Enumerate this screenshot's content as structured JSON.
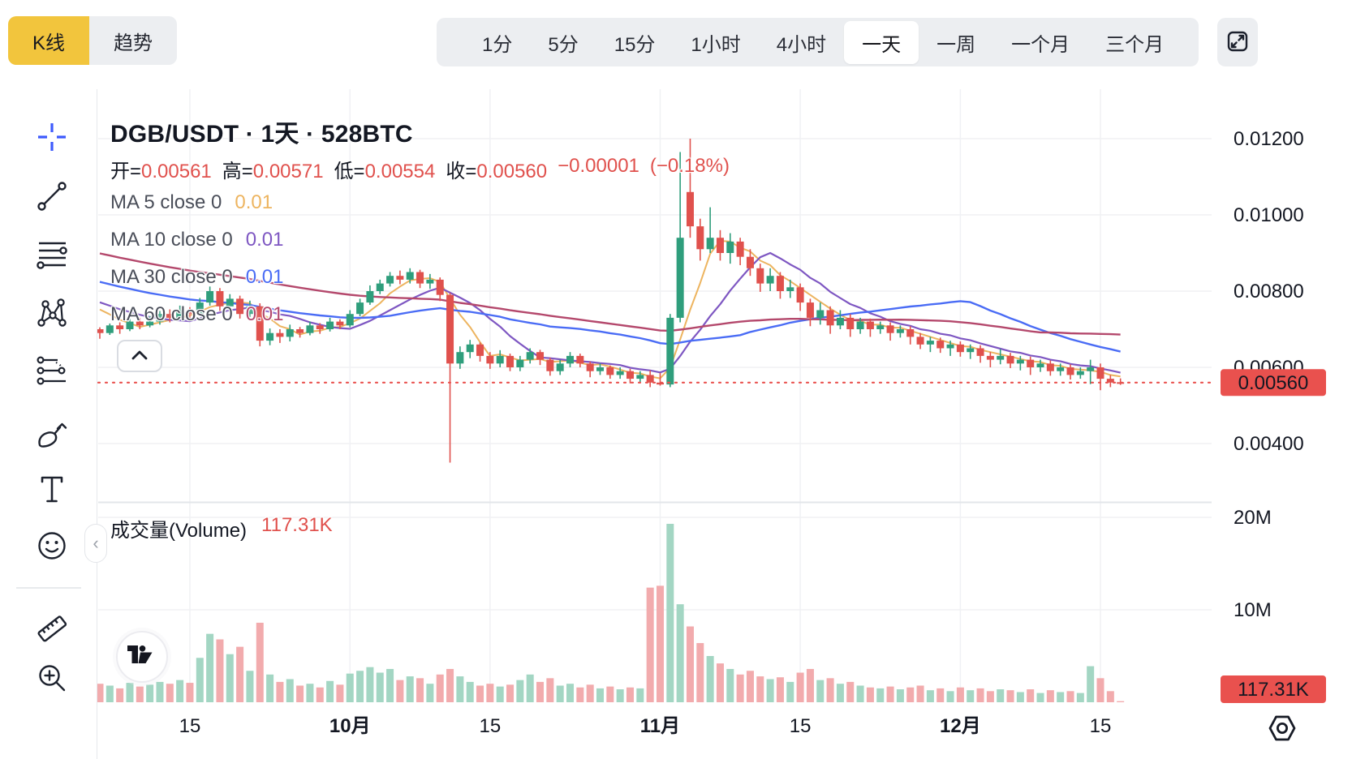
{
  "topbar": {
    "chart_type_toggle": {
      "kline_label": "K线",
      "trend_label": "趋势",
      "active": "K线",
      "active_color": "#F2C53D"
    },
    "timeframes": [
      "1分",
      "5分",
      "15分",
      "1小时",
      "4小时",
      "一天",
      "一周",
      "一个月",
      "三个月"
    ],
    "selected_timeframe": "一天"
  },
  "sidebar": {
    "tools": [
      "crosshair",
      "trend-line",
      "fib-retracement",
      "xabcd-pattern",
      "forecast",
      "brush",
      "text",
      "emoji",
      "ruler",
      "zoom-in"
    ]
  },
  "legend": {
    "title": "DGB/USDT · 1天 · 528BTC",
    "ohlc": {
      "open_label": "开=",
      "open": "0.00561",
      "high_label": "高=",
      "high": "0.00571",
      "low_label": "低=",
      "low": "0.00554",
      "close_label": "收=",
      "close": "0.00560",
      "change": "−0.00001",
      "change_pct": "(−0.18%)"
    },
    "ma_rows": [
      {
        "label": "MA 5 close 0",
        "value": "0.01",
        "color": "#EDB45F"
      },
      {
        "label": "MA 10 close 0",
        "value": "0.01",
        "color": "#7E57C2"
      },
      {
        "label": "MA 30 close 0",
        "value": "0.01",
        "color": "#4A6CF5"
      },
      {
        "label": "MA 60 close 0",
        "value": "0.01",
        "color": "#B4486C"
      }
    ]
  },
  "volume_legend": {
    "label": "成交量(Volume)",
    "value": "117.31K"
  },
  "chart_data": {
    "type": "candlestick+volume",
    "symbol": "DGB/USDT",
    "interval": "1天",
    "subtitle": "528BTC",
    "grid": true,
    "y_ticks": [
      {
        "label": "0.01200",
        "price": 0.012
      },
      {
        "label": "0.01000",
        "price": 0.01
      },
      {
        "label": "0.00800",
        "price": 0.008
      },
      {
        "label": "0.00600",
        "price": 0.006
      },
      {
        "label": "0.00400",
        "price": 0.004
      }
    ],
    "volume_ticks": [
      {
        "label": "20M",
        "value": 20
      },
      {
        "label": "10M",
        "value": 10
      }
    ],
    "x_ticks": [
      {
        "index": 9,
        "label": "15",
        "bold": false
      },
      {
        "index": 25,
        "label": "10月",
        "bold": true
      },
      {
        "index": 39,
        "label": "15",
        "bold": false
      },
      {
        "index": 56,
        "label": "11月",
        "bold": true
      },
      {
        "index": 70,
        "label": "15",
        "bold": false
      },
      {
        "index": 86,
        "label": "12月",
        "bold": true
      },
      {
        "index": 100,
        "label": "15",
        "bold": false
      }
    ],
    "price_range_visible": [
      0.0035,
      0.0122
    ],
    "current_price": {
      "value": 0.0056,
      "label": "0.00560"
    },
    "current_volume": {
      "value": 0.117,
      "label": "117.31K"
    },
    "colors": {
      "up": "#2F9E7C",
      "down": "#E0514D",
      "vol_up": "#A3D6C3",
      "vol_down": "#F2ABAD",
      "grid": "#F0F1F4",
      "separator": "#E3E6EA",
      "ma5": "#EDB45F",
      "ma10": "#7E57C2",
      "ma30": "#4A6CF5",
      "ma60": "#B4486C",
      "tag": "#E9514E",
      "current_line": "#E9514E",
      "axis_text": "#131722"
    },
    "ma_definitions": [
      {
        "period": 5,
        "color": "#EDB45F",
        "width": 2
      },
      {
        "period": 10,
        "color": "#7E57C2",
        "width": 2.2
      },
      {
        "period": 30,
        "color": "#4A6CF5",
        "width": 2.4
      },
      {
        "period": 60,
        "color": "#B4486C",
        "width": 2.4
      }
    ],
    "ma_warmup": {
      "start": 0.0105,
      "end": 0.0076,
      "count": 60
    },
    "candles_format": [
      "open",
      "high",
      "low",
      "close",
      "volume_millions"
    ],
    "candles": [
      [
        0.007,
        0.00705,
        0.00675,
        0.0069,
        2.0
      ],
      [
        0.0069,
        0.00715,
        0.00685,
        0.0071,
        1.8
      ],
      [
        0.0071,
        0.00718,
        0.00688,
        0.007,
        1.5
      ],
      [
        0.007,
        0.00728,
        0.00695,
        0.0072,
        2.1
      ],
      [
        0.0072,
        0.0073,
        0.007,
        0.0071,
        1.7
      ],
      [
        0.0071,
        0.00735,
        0.00705,
        0.0072,
        1.9
      ],
      [
        0.0072,
        0.00748,
        0.00712,
        0.0074,
        2.2
      ],
      [
        0.0074,
        0.00752,
        0.00718,
        0.0073,
        2.0
      ],
      [
        0.0073,
        0.00762,
        0.00724,
        0.0075,
        2.4
      ],
      [
        0.0075,
        0.00758,
        0.00728,
        0.0074,
        2.1
      ],
      [
        0.0074,
        0.00782,
        0.00735,
        0.0077,
        4.8
      ],
      [
        0.0077,
        0.00812,
        0.00762,
        0.008,
        7.4
      ],
      [
        0.008,
        0.00808,
        0.00748,
        0.0076,
        6.8
      ],
      [
        0.0076,
        0.00792,
        0.00745,
        0.0078,
        5.2
      ],
      [
        0.0078,
        0.00788,
        0.00728,
        0.0074,
        6.0
      ],
      [
        0.0074,
        0.00775,
        0.00732,
        0.0076,
        3.4
      ],
      [
        0.0076,
        0.00768,
        0.00655,
        0.0067,
        8.6
      ],
      [
        0.0067,
        0.00702,
        0.00658,
        0.0069,
        3.0
      ],
      [
        0.0069,
        0.007,
        0.00664,
        0.0068,
        2.2
      ],
      [
        0.0068,
        0.00712,
        0.00668,
        0.007,
        2.5
      ],
      [
        0.007,
        0.00706,
        0.00678,
        0.0069,
        1.8
      ],
      [
        0.0069,
        0.0072,
        0.00684,
        0.0071,
        2.0
      ],
      [
        0.0071,
        0.00716,
        0.00688,
        0.007,
        1.6
      ],
      [
        0.007,
        0.0073,
        0.00694,
        0.0072,
        2.3
      ],
      [
        0.0072,
        0.00726,
        0.007,
        0.0071,
        1.9
      ],
      [
        0.0071,
        0.0075,
        0.00705,
        0.0074,
        3.1
      ],
      [
        0.0074,
        0.0078,
        0.00734,
        0.0077,
        3.4
      ],
      [
        0.0077,
        0.00815,
        0.00764,
        0.008,
        3.8
      ],
      [
        0.008,
        0.0083,
        0.00792,
        0.0082,
        3.2
      ],
      [
        0.0082,
        0.0085,
        0.00812,
        0.0084,
        3.6
      ],
      [
        0.0084,
        0.00854,
        0.00818,
        0.0083,
        2.4
      ],
      [
        0.0083,
        0.0086,
        0.0082,
        0.0085,
        2.8
      ],
      [
        0.0085,
        0.00856,
        0.00808,
        0.0082,
        2.6
      ],
      [
        0.0082,
        0.00845,
        0.00806,
        0.0083,
        2.0
      ],
      [
        0.0083,
        0.00836,
        0.00774,
        0.0079,
        3.0
      ],
      [
        0.0079,
        0.00795,
        0.0035,
        0.0061,
        3.6
      ],
      [
        0.0061,
        0.00655,
        0.00596,
        0.0064,
        2.8
      ],
      [
        0.0064,
        0.00672,
        0.00624,
        0.0066,
        2.2
      ],
      [
        0.0066,
        0.00665,
        0.00615,
        0.0063,
        1.8
      ],
      [
        0.0063,
        0.0064,
        0.00596,
        0.0061,
        2.0
      ],
      [
        0.0061,
        0.00645,
        0.006,
        0.0063,
        1.7
      ],
      [
        0.0063,
        0.00636,
        0.0059,
        0.006,
        1.9
      ],
      [
        0.006,
        0.0063,
        0.0059,
        0.0062,
        2.4
      ],
      [
        0.0062,
        0.0065,
        0.0061,
        0.0064,
        3.0
      ],
      [
        0.0064,
        0.00646,
        0.00606,
        0.0062,
        2.2
      ],
      [
        0.0062,
        0.00625,
        0.00578,
        0.0059,
        2.6
      ],
      [
        0.0059,
        0.0062,
        0.0058,
        0.0061,
        1.8
      ],
      [
        0.0061,
        0.0064,
        0.006,
        0.0063,
        2.0
      ],
      [
        0.0063,
        0.00636,
        0.006,
        0.0061,
        1.6
      ],
      [
        0.0061,
        0.00615,
        0.00574,
        0.0059,
        1.9
      ],
      [
        0.0059,
        0.0061,
        0.0058,
        0.006,
        1.5
      ],
      [
        0.006,
        0.00605,
        0.0057,
        0.0058,
        1.7
      ],
      [
        0.0058,
        0.006,
        0.0057,
        0.0059,
        1.4
      ],
      [
        0.0059,
        0.00596,
        0.00558,
        0.0057,
        1.6
      ],
      [
        0.0057,
        0.0059,
        0.0056,
        0.0058,
        1.5
      ],
      [
        0.0058,
        0.00592,
        0.00548,
        0.0056,
        12.4
      ],
      [
        0.0056,
        0.00585,
        0.00552,
        0.00555,
        12.6
      ],
      [
        0.00555,
        0.0074,
        0.00548,
        0.0073,
        19.3
      ],
      [
        0.0073,
        0.01165,
        0.00718,
        0.0094,
        10.6
      ],
      [
        0.0106,
        0.012,
        0.0094,
        0.0097,
        8.2
      ],
      [
        0.0097,
        0.0099,
        0.0088,
        0.0091,
        6.4
      ],
      [
        0.0091,
        0.0102,
        0.009,
        0.0094,
        5.0
      ],
      [
        0.0094,
        0.0096,
        0.0088,
        0.009,
        4.2
      ],
      [
        0.009,
        0.00952,
        0.00872,
        0.0093,
        3.6
      ],
      [
        0.0093,
        0.0094,
        0.00868,
        0.0089,
        3.0
      ],
      [
        0.0089,
        0.0091,
        0.0084,
        0.0086,
        3.4
      ],
      [
        0.0086,
        0.00872,
        0.00798,
        0.0082,
        2.8
      ],
      [
        0.0082,
        0.0086,
        0.008,
        0.0084,
        2.5
      ],
      [
        0.0084,
        0.0085,
        0.0078,
        0.008,
        2.7
      ],
      [
        0.008,
        0.0083,
        0.00782,
        0.0081,
        2.2
      ],
      [
        0.0081,
        0.0082,
        0.00748,
        0.0077,
        3.2
      ],
      [
        0.0077,
        0.0078,
        0.00708,
        0.0073,
        3.6
      ],
      [
        0.0073,
        0.0077,
        0.00712,
        0.0075,
        2.4
      ],
      [
        0.0075,
        0.0076,
        0.00688,
        0.0071,
        2.6
      ],
      [
        0.0071,
        0.0075,
        0.007,
        0.0073,
        2.0
      ],
      [
        0.0073,
        0.0074,
        0.0068,
        0.007,
        2.2
      ],
      [
        0.007,
        0.0073,
        0.00688,
        0.0072,
        1.8
      ],
      [
        0.0072,
        0.00728,
        0.0068,
        0.007,
        1.6
      ],
      [
        0.007,
        0.0072,
        0.00688,
        0.0071,
        1.5
      ],
      [
        0.0071,
        0.00718,
        0.0067,
        0.0069,
        1.7
      ],
      [
        0.0069,
        0.0071,
        0.00678,
        0.007,
        1.4
      ],
      [
        0.007,
        0.00708,
        0.0066,
        0.0068,
        1.6
      ],
      [
        0.0068,
        0.0069,
        0.00648,
        0.0066,
        1.8
      ],
      [
        0.0066,
        0.0068,
        0.0064,
        0.0067,
        1.3
      ],
      [
        0.0067,
        0.00678,
        0.00638,
        0.0065,
        1.5
      ],
      [
        0.0065,
        0.0067,
        0.0063,
        0.0066,
        1.2
      ],
      [
        0.0066,
        0.00668,
        0.00628,
        0.0064,
        1.6
      ],
      [
        0.0064,
        0.0066,
        0.00622,
        0.0065,
        1.3
      ],
      [
        0.0065,
        0.00658,
        0.00612,
        0.0063,
        1.5
      ],
      [
        0.0063,
        0.0064,
        0.006,
        0.0062,
        1.2
      ],
      [
        0.0062,
        0.00648,
        0.00608,
        0.0063,
        1.4
      ],
      [
        0.0063,
        0.00638,
        0.00598,
        0.0061,
        1.3
      ],
      [
        0.0061,
        0.0063,
        0.00592,
        0.0062,
        1.1
      ],
      [
        0.0062,
        0.00628,
        0.0058,
        0.006,
        1.4
      ],
      [
        0.006,
        0.0062,
        0.00588,
        0.0061,
        1.0
      ],
      [
        0.0061,
        0.00618,
        0.00578,
        0.0059,
        1.3
      ],
      [
        0.0059,
        0.0061,
        0.00578,
        0.006,
        1.1
      ],
      [
        0.006,
        0.00608,
        0.00568,
        0.0058,
        1.2
      ],
      [
        0.0058,
        0.006,
        0.0057,
        0.0059,
        1.0
      ],
      [
        0.0059,
        0.0062,
        0.00556,
        0.006,
        3.9
      ],
      [
        0.006,
        0.0061,
        0.0054,
        0.0057,
        2.6
      ],
      [
        0.0057,
        0.0058,
        0.00548,
        0.0056,
        1.2
      ],
      [
        0.00561,
        0.00571,
        0.00554,
        0.0056,
        0.117
      ]
    ]
  }
}
